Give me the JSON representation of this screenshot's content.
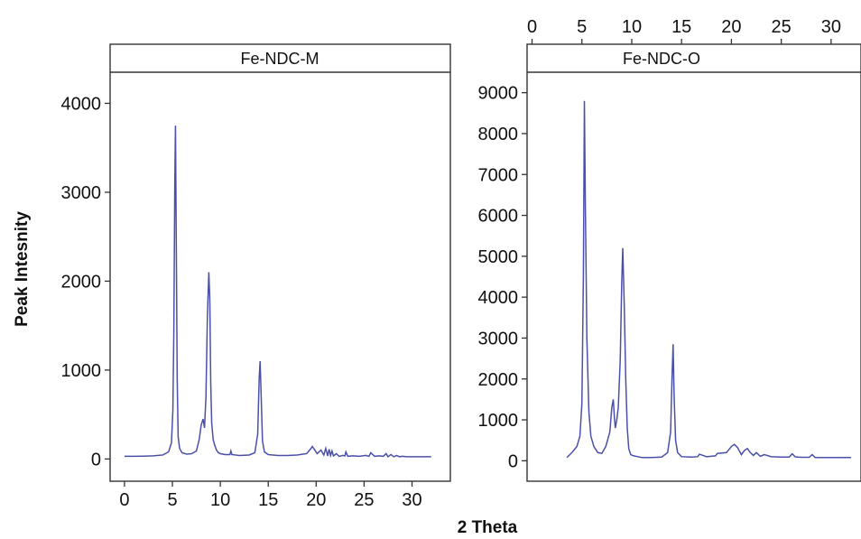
{
  "figure": {
    "ylabel": "Peak Intesnity",
    "xlabel": "2 Theta"
  },
  "chart_data": [
    {
      "type": "line",
      "title": "Fe-NDC-M",
      "xlabel": "2 Theta",
      "ylabel": "Peak Intesnity",
      "xlim": [
        -1.5,
        34
      ],
      "ylim": [
        -250,
        4350
      ],
      "xticks": [
        0,
        5,
        10,
        15,
        20,
        25,
        30
      ],
      "yticks": [
        0,
        1000,
        2000,
        3000,
        4000
      ],
      "xaxis_position": "bottom",
      "grid": false,
      "color": "#4a50a8",
      "series": [
        {
          "x": [
            0,
            1,
            2,
            3,
            4,
            4.6,
            4.9,
            5.05,
            5.15,
            5.25,
            5.32,
            5.4,
            5.5,
            5.6,
            5.75,
            6,
            6.5,
            7,
            7.5,
            7.8,
            8.0,
            8.2,
            8.35,
            8.5,
            8.65,
            8.8,
            8.9,
            9.0,
            9.1,
            9.25,
            9.4,
            9.6,
            9.8,
            10.0,
            10.5,
            11,
            11.1,
            11.2,
            12,
            13,
            13.6,
            13.9,
            14.05,
            14.15,
            14.25,
            14.4,
            14.6,
            15,
            16,
            17,
            18,
            19,
            19.4,
            19.6,
            19.8,
            20.1,
            20.5,
            20.8,
            21.0,
            21.2,
            21.35,
            21.5,
            21.65,
            21.8,
            22.1,
            22.4,
            22.8,
            23.0,
            23.1,
            23.3,
            23.8,
            24.5,
            25.2,
            25.5,
            25.7,
            26.1,
            26.6,
            27.0,
            27.3,
            27.5,
            27.8,
            28.1,
            28.4,
            28.7,
            29.0,
            29.5,
            30,
            31,
            32
          ],
          "y": [
            30,
            30,
            32,
            35,
            45,
            80,
            180,
            550,
            1450,
            3100,
            3750,
            2500,
            900,
            250,
            120,
            70,
            55,
            60,
            90,
            220,
            380,
            450,
            350,
            700,
            1600,
            2100,
            1800,
            850,
            400,
            220,
            160,
            100,
            70,
            60,
            50,
            50,
            90,
            50,
            40,
            45,
            70,
            280,
            900,
            1100,
            750,
            200,
            80,
            50,
            40,
            40,
            45,
            60,
            110,
            140,
            110,
            60,
            100,
            45,
            120,
            35,
            110,
            40,
            90,
            35,
            60,
            30,
            40,
            35,
            80,
            30,
            35,
            30,
            40,
            30,
            70,
            30,
            35,
            30,
            60,
            25,
            50,
            25,
            40,
            25,
            30,
            25,
            25,
            25,
            25
          ]
        }
      ]
    },
    {
      "type": "line",
      "title": "Fe-NDC-O",
      "xlabel": "2 Theta",
      "ylabel": "",
      "xlim": [
        -0.5,
        33
      ],
      "ylim": [
        -500,
        9500
      ],
      "xticks": [
        0,
        5,
        10,
        15,
        20,
        25,
        30
      ],
      "yticks": [
        0,
        1000,
        2000,
        3000,
        4000,
        5000,
        6000,
        7000,
        8000,
        9000
      ],
      "xaxis_position": "top",
      "grid": false,
      "color": "#4a50a8",
      "series": [
        {
          "x": [
            3.5,
            4,
            4.5,
            4.8,
            5.0,
            5.15,
            5.25,
            5.35,
            5.5,
            5.7,
            5.9,
            6.2,
            6.6,
            7,
            7.4,
            7.8,
            8.0,
            8.15,
            8.25,
            8.35,
            8.5,
            8.65,
            8.85,
            9.0,
            9.1,
            9.25,
            9.4,
            9.55,
            9.7,
            9.9,
            10.2,
            10.6,
            11,
            12,
            13,
            13.6,
            13.9,
            14.05,
            14.15,
            14.25,
            14.4,
            14.6,
            15,
            16,
            16.6,
            16.8,
            17.5,
            18.4,
            18.6,
            19.5,
            20.0,
            20.3,
            20.6,
            21.0,
            21.3,
            21.6,
            21.9,
            22.2,
            22.5,
            22.9,
            23.3,
            24,
            25,
            25.8,
            26.1,
            26.4,
            27,
            27.8,
            28.1,
            28.4,
            29,
            30,
            31,
            32
          ],
          "y": [
            80,
            200,
            350,
            600,
            1400,
            4500,
            8800,
            6200,
            3000,
            1200,
            600,
            350,
            200,
            180,
            350,
            700,
            1300,
            1500,
            1100,
            800,
            1000,
            1300,
            2500,
            4400,
            5200,
            3800,
            2000,
            800,
            300,
            150,
            120,
            100,
            80,
            80,
            90,
            200,
            700,
            2100,
            2850,
            1600,
            500,
            200,
            100,
            90,
            100,
            160,
            100,
            120,
            180,
            200,
            350,
            400,
            330,
            150,
            250,
            300,
            200,
            130,
            200,
            110,
            150,
            100,
            90,
            90,
            170,
            95,
            85,
            85,
            150,
            80,
            80,
            80,
            80,
            80
          ]
        }
      ]
    }
  ]
}
